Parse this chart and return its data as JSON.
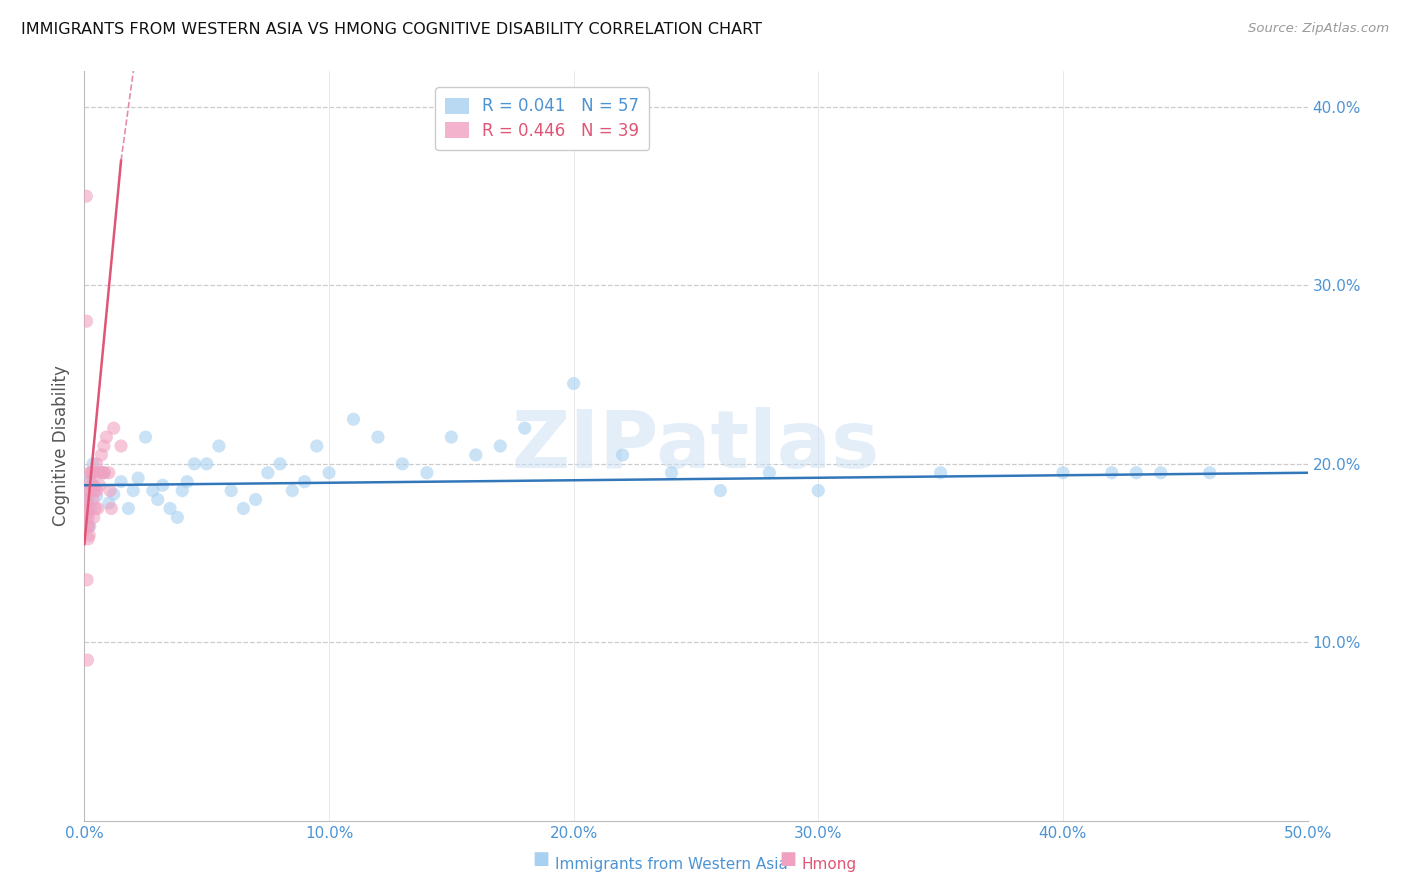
{
  "title": "IMMIGRANTS FROM WESTERN ASIA VS HMONG COGNITIVE DISABILITY CORRELATION CHART",
  "source": "Source: ZipAtlas.com",
  "ylabel": "Cognitive Disability",
  "watermark": "ZIPatlas",
  "xlim": [
    0.0,
    50.0
  ],
  "ylim": [
    0.0,
    42.0
  ],
  "xticks": [
    0.0,
    10.0,
    20.0,
    30.0,
    40.0,
    50.0
  ],
  "xtick_labels": [
    "0.0%",
    "10.0%",
    "20.0%",
    "30.0%",
    "40.0%",
    "50.0%"
  ],
  "yticks_right": [
    10.0,
    20.0,
    30.0,
    40.0
  ],
  "ytick_labels_right": [
    "10.0%",
    "20.0%",
    "30.0%",
    "40.0%"
  ],
  "series_blue": {
    "name": "Immigrants from Western Asia",
    "color": "#a8d0f0",
    "x": [
      0.1,
      0.2,
      0.3,
      0.15,
      0.25,
      0.35,
      0.4,
      0.12,
      0.22,
      0.5,
      0.8,
      1.0,
      1.2,
      1.5,
      1.8,
      2.0,
      2.2,
      2.5,
      2.8,
      3.0,
      3.2,
      3.5,
      3.8,
      4.0,
      4.2,
      4.5,
      5.0,
      5.5,
      6.0,
      6.5,
      7.0,
      7.5,
      8.0,
      8.5,
      9.0,
      9.5,
      10.0,
      11.0,
      12.0,
      13.0,
      14.0,
      15.0,
      16.0,
      17.0,
      18.0,
      20.0,
      22.0,
      24.0,
      26.0,
      28.0,
      30.0,
      35.0,
      40.0,
      42.0,
      43.0,
      44.0,
      46.0
    ],
    "y": [
      19.0,
      18.5,
      19.5,
      18.0,
      17.5,
      20.0,
      18.8,
      17.2,
      16.5,
      18.2,
      19.5,
      17.8,
      18.3,
      19.0,
      17.5,
      18.5,
      19.2,
      21.5,
      18.5,
      18.0,
      18.8,
      17.5,
      17.0,
      18.5,
      19.0,
      20.0,
      20.0,
      21.0,
      18.5,
      17.5,
      18.0,
      19.5,
      20.0,
      18.5,
      19.0,
      21.0,
      19.5,
      22.5,
      21.5,
      20.0,
      19.5,
      21.5,
      20.5,
      21.0,
      22.0,
      24.5,
      20.5,
      19.5,
      18.5,
      19.5,
      18.5,
      19.5,
      19.5,
      19.5,
      19.5,
      19.5,
      19.5
    ]
  },
  "series_pink": {
    "name": "Hmong",
    "color": "#f0a0c0",
    "x": [
      0.1,
      0.12,
      0.14,
      0.16,
      0.18,
      0.2,
      0.22,
      0.25,
      0.28,
      0.1,
      0.12,
      0.14,
      0.16,
      0.3,
      0.32,
      0.35,
      0.38,
      0.4,
      0.42,
      0.45,
      0.5,
      0.52,
      0.55,
      0.6,
      0.62,
      0.7,
      0.72,
      0.8,
      0.82,
      0.9,
      1.0,
      1.05,
      1.1,
      1.2,
      1.5,
      0.08,
      0.09,
      0.11,
      0.13
    ],
    "y": [
      18.5,
      18.0,
      17.5,
      17.0,
      16.5,
      16.0,
      19.5,
      19.0,
      18.5,
      17.8,
      17.2,
      16.5,
      15.8,
      19.5,
      18.8,
      18.0,
      17.0,
      19.5,
      18.5,
      17.5,
      20.0,
      18.5,
      17.5,
      19.5,
      18.8,
      20.5,
      19.5,
      21.0,
      19.5,
      21.5,
      19.5,
      18.5,
      17.5,
      22.0,
      21.0,
      35.0,
      28.0,
      13.5,
      9.0
    ]
  },
  "blue_line": {
    "x_start": 0.0,
    "x_end": 50.0,
    "y_start": 18.8,
    "y_end": 19.5
  },
  "pink_line_solid": {
    "x_start": 0.0,
    "x_end": 1.5,
    "y_start": 15.5,
    "y_end": 37.0
  },
  "pink_line_dash": {
    "x_start": 1.5,
    "x_end": 2.5,
    "y_start": 37.0,
    "y_end": 47.0
  },
  "bg_color": "#ffffff",
  "grid_color": "#cccccc",
  "title_color": "#111111",
  "axis_color": "#4d94d4",
  "scatter_alpha": 0.6,
  "scatter_size": 90,
  "legend_R_blue": "0.041",
  "legend_N_blue": "57",
  "legend_R_pink": "0.446",
  "legend_N_pink": "39"
}
